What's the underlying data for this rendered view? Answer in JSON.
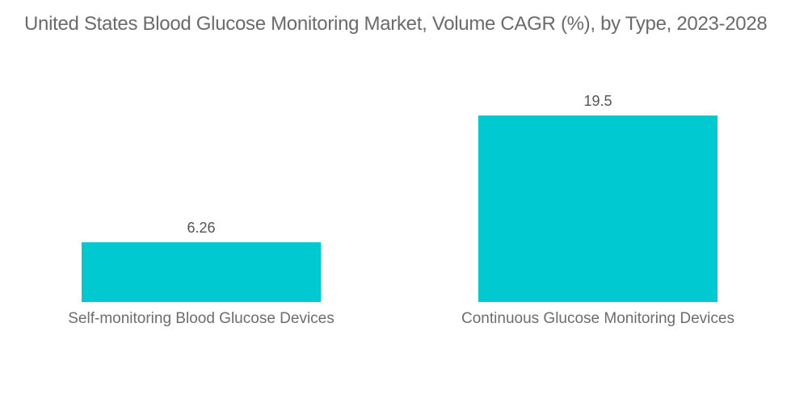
{
  "title": "United States Blood Glucose Monitoring Market, Volume CAGR (%), by Type, 2023-2028",
  "colors": {
    "bar": "#00C9D2",
    "title_text": "#6B6B6B",
    "value_text": "#545454",
    "category_text": "#6D6D6D",
    "background": "#FFFFFF"
  },
  "chart_data": {
    "type": "bar",
    "title": "United States Blood Glucose Monitoring Market, Volume CAGR (%), by Type, 2023-2028",
    "categories": [
      "Self-monitoring Blood Glucose Devices",
      "Continuous Glucose Monitoring Devices"
    ],
    "values": [
      6.26,
      19.5
    ],
    "value_labels": [
      "6.26",
      "19.5"
    ],
    "xlabel": "",
    "ylabel": "",
    "ylim": [
      0,
      20
    ],
    "grid": false,
    "legend": false,
    "axes_visible": false,
    "orientation": "vertical"
  }
}
